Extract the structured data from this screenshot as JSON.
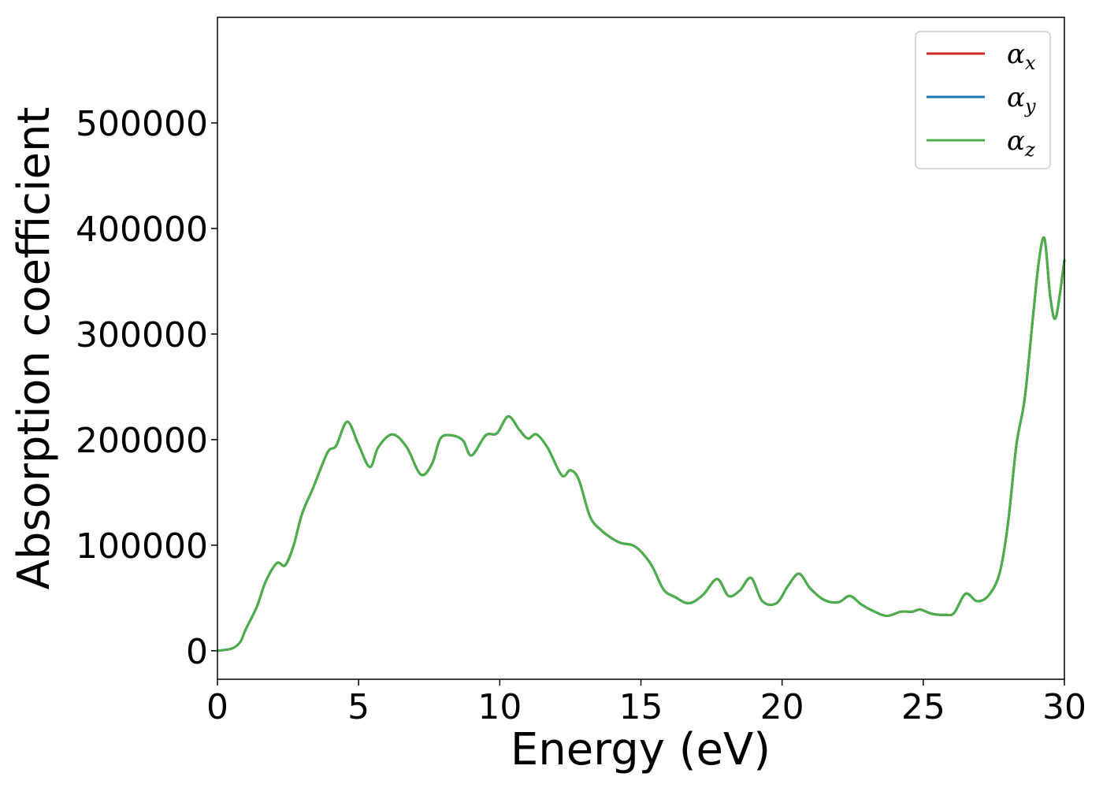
{
  "chart_data": {
    "type": "line",
    "title": "",
    "xlabel": "Energy (eV)",
    "ylabel": "Absorption coefficient",
    "xlim": [
      0,
      30
    ],
    "ylim": [
      -27000,
      600000
    ],
    "xticks": [
      0,
      5,
      10,
      15,
      20,
      25,
      30
    ],
    "yticks": [
      0,
      100000,
      200000,
      300000,
      400000,
      500000
    ],
    "xtick_labels": [
      "0",
      "5",
      "10",
      "15",
      "20",
      "25",
      "30"
    ],
    "ytick_labels": [
      "0",
      "100000",
      "200000",
      "300000",
      "400000",
      "500000"
    ],
    "grid": false,
    "legend": {
      "placement": "top-right"
    },
    "x": [
      0,
      0.5,
      0.8,
      1.0,
      1.4,
      1.7,
      2.1,
      2.4,
      2.7,
      3.0,
      3.4,
      3.9,
      4.2,
      4.6,
      5.0,
      5.4,
      5.7,
      6.2,
      6.7,
      7.2,
      7.6,
      7.9,
      8.3,
      8.7,
      9.0,
      9.5,
      9.9,
      10.3,
      10.7,
      11.0,
      11.3,
      11.7,
      12.2,
      12.5,
      12.8,
      13.2,
      13.6,
      14.0,
      14.3,
      14.7,
      15.0,
      15.4,
      15.8,
      16.2,
      16.7,
      17.2,
      17.7,
      18.1,
      18.5,
      18.9,
      19.3,
      19.8,
      20.2,
      20.6,
      21.0,
      21.5,
      22.0,
      22.4,
      22.8,
      23.2,
      23.7,
      24.2,
      24.6,
      24.9,
      25.3,
      25.8,
      26.1,
      26.5,
      26.9,
      27.3,
      27.7,
      28.0,
      28.3,
      28.6,
      28.9,
      29.1,
      29.3,
      29.5,
      29.7,
      30.0
    ],
    "series": [
      {
        "name": "α_x",
        "name_base": "α",
        "name_sub": "x",
        "color": "#d62728",
        "values": [
          0,
          2000,
          8000,
          20000,
          42000,
          65000,
          83000,
          81000,
          100000,
          130000,
          155000,
          188000,
          194000,
          217000,
          195000,
          174000,
          193000,
          205000,
          193000,
          167000,
          177000,
          201000,
          204000,
          199000,
          185000,
          204000,
          206000,
          222000,
          209000,
          201000,
          205000,
          192000,
          166000,
          171000,
          162000,
          127000,
          114000,
          106000,
          102000,
          100000,
          94000,
          80000,
          58000,
          51000,
          45000,
          53000,
          68000,
          52000,
          57000,
          69000,
          47000,
          45000,
          61000,
          73000,
          59000,
          48000,
          46000,
          52000,
          44000,
          38000,
          33000,
          37000,
          37000,
          39000,
          35000,
          34000,
          36000,
          54000,
          47000,
          52000,
          73000,
          120000,
          195000,
          240000,
          320000,
          370000,
          390000,
          335000,
          316000,
          370000
        ]
      },
      {
        "name": "α_y",
        "name_base": "α",
        "name_sub": "y",
        "color": "#1f77b4",
        "values": [
          0,
          2000,
          8000,
          20000,
          42000,
          65000,
          83000,
          81000,
          100000,
          130000,
          155000,
          188000,
          194000,
          217000,
          195000,
          174000,
          193000,
          205000,
          193000,
          167000,
          177000,
          201000,
          204000,
          199000,
          185000,
          204000,
          206000,
          222000,
          209000,
          201000,
          205000,
          192000,
          166000,
          171000,
          162000,
          127000,
          114000,
          106000,
          102000,
          100000,
          94000,
          80000,
          58000,
          51000,
          45000,
          53000,
          68000,
          52000,
          57000,
          69000,
          47000,
          45000,
          61000,
          73000,
          59000,
          48000,
          46000,
          52000,
          44000,
          38000,
          33000,
          37000,
          37000,
          39000,
          35000,
          34000,
          36000,
          54000,
          47000,
          52000,
          73000,
          120000,
          195000,
          240000,
          320000,
          370000,
          390000,
          335000,
          316000,
          370000
        ]
      },
      {
        "name": "α_z",
        "name_base": "α",
        "name_sub": "z",
        "color": "#4daf4a",
        "values": [
          0,
          2000,
          8000,
          20000,
          42000,
          65000,
          83000,
          81000,
          100000,
          130000,
          155000,
          188000,
          194000,
          217000,
          195000,
          174000,
          193000,
          205000,
          193000,
          167000,
          177000,
          201000,
          204000,
          199000,
          185000,
          204000,
          206000,
          222000,
          209000,
          201000,
          205000,
          192000,
          166000,
          171000,
          162000,
          127000,
          114000,
          106000,
          102000,
          100000,
          94000,
          80000,
          58000,
          51000,
          45000,
          53000,
          68000,
          52000,
          57000,
          69000,
          47000,
          45000,
          61000,
          73000,
          59000,
          48000,
          46000,
          52000,
          44000,
          38000,
          33000,
          37000,
          37000,
          39000,
          35000,
          34000,
          36000,
          54000,
          47000,
          52000,
          73000,
          120000,
          195000,
          240000,
          320000,
          370000,
          390000,
          335000,
          316000,
          370000
        ]
      }
    ]
  }
}
